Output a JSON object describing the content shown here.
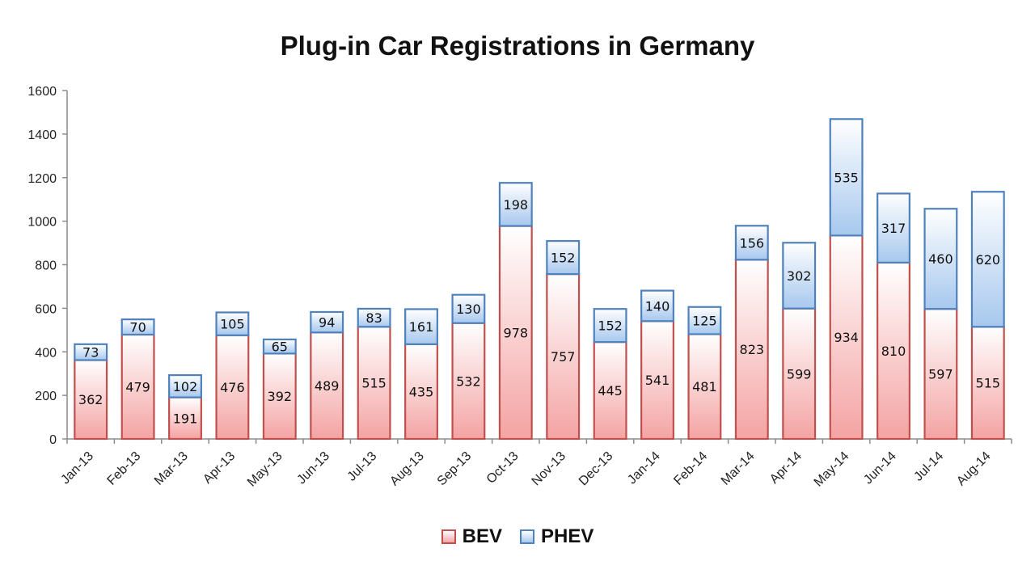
{
  "chart_data": {
    "type": "bar",
    "stacked": true,
    "title": "Plug-in Car Registrations in Germany",
    "xlabel": "",
    "ylabel": "",
    "ylim": [
      0,
      1600
    ],
    "yticks": [
      0,
      200,
      400,
      600,
      800,
      1000,
      1200,
      1400,
      1600
    ],
    "grid": false,
    "legend_position": "bottom",
    "categories": [
      "Jan-13",
      "Feb-13",
      "Mar-13",
      "Apr-13",
      "May-13",
      "Jun-13",
      "Jul-13",
      "Aug-13",
      "Sep-13",
      "Oct-13",
      "Nov-13",
      "Dec-13",
      "Jan-14",
      "Feb-14",
      "Mar-14",
      "Apr-14",
      "May-14",
      "Jun-14",
      "Jul-14",
      "Aug-14"
    ],
    "series": [
      {
        "name": "BEV",
        "values": [
          362,
          479,
          191,
          476,
          392,
          489,
          515,
          435,
          532,
          978,
          757,
          445,
          541,
          481,
          823,
          599,
          934,
          810,
          597,
          515
        ],
        "fill_top": "#ffffff",
        "fill_bottom": "#f4a3a3",
        "stroke": "#c0504d"
      },
      {
        "name": "PHEV",
        "values": [
          73,
          70,
          102,
          105,
          65,
          94,
          83,
          161,
          130,
          198,
          152,
          152,
          140,
          125,
          156,
          302,
          535,
          317,
          460,
          620
        ],
        "fill_top": "#ffffff",
        "fill_bottom": "#a7c8ee",
        "stroke": "#4f81bd"
      }
    ]
  }
}
